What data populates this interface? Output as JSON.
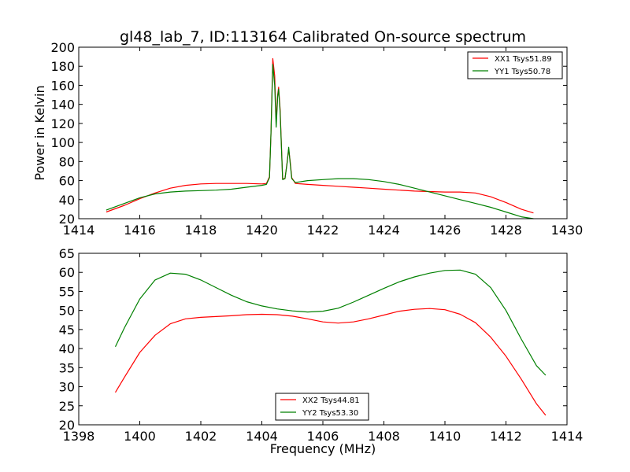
{
  "chart_data": [
    {
      "type": "line",
      "title": "gl48_lab_7, ID:113164 Calibrated On-source spectrum",
      "xlabel": "",
      "ylabel": "Power in Kelvin",
      "xlim": [
        1414,
        1430
      ],
      "ylim": [
        20,
        200
      ],
      "xticks": [
        1414,
        1416,
        1418,
        1420,
        1422,
        1424,
        1426,
        1428,
        1430
      ],
      "yticks": [
        20,
        40,
        60,
        80,
        100,
        120,
        140,
        160,
        180,
        200
      ],
      "legend": "top-right",
      "grid": false,
      "series": [
        {
          "name": "XX1 Tsys51.89",
          "color": "#ff0000",
          "x": [
            1414.9,
            1415.5,
            1416.0,
            1416.5,
            1417.0,
            1417.5,
            1418.0,
            1418.5,
            1419.0,
            1419.5,
            1420.0,
            1420.15,
            1420.25,
            1420.3,
            1420.36,
            1420.42,
            1420.47,
            1420.52,
            1420.55,
            1420.6,
            1420.68,
            1420.76,
            1420.83,
            1420.88,
            1420.93,
            1420.98,
            1421.1,
            1421.5,
            1422.0,
            1422.5,
            1423.0,
            1423.5,
            1424.0,
            1424.5,
            1425.0,
            1425.5,
            1426.0,
            1426.5,
            1427.0,
            1427.5,
            1428.0,
            1428.5,
            1428.9
          ],
          "values": [
            27,
            34,
            41,
            47,
            52,
            55,
            56.5,
            57,
            57,
            57,
            56.5,
            57,
            64,
            110,
            188,
            170,
            122,
            150,
            158,
            135,
            62,
            62,
            80,
            93,
            80,
            63,
            57,
            56,
            55,
            54,
            53,
            52,
            51,
            50,
            49,
            48.5,
            48,
            48,
            47,
            43,
            37,
            30,
            26
          ]
        },
        {
          "name": "YY1 Tsys50.78",
          "color": "#008000",
          "x": [
            1414.9,
            1415.5,
            1416.0,
            1416.5,
            1417.0,
            1417.5,
            1418.0,
            1418.5,
            1419.0,
            1419.5,
            1420.0,
            1420.15,
            1420.25,
            1420.3,
            1420.36,
            1420.42,
            1420.47,
            1420.52,
            1420.55,
            1420.6,
            1420.68,
            1420.76,
            1420.83,
            1420.88,
            1420.93,
            1420.98,
            1421.1,
            1421.5,
            1422.0,
            1422.5,
            1423.0,
            1423.5,
            1424.0,
            1424.5,
            1425.0,
            1425.5,
            1426.0,
            1426.5,
            1427.0,
            1427.5,
            1428.0,
            1428.5,
            1428.9
          ],
          "values": [
            29,
            36,
            42,
            46,
            48,
            49,
            49.5,
            50,
            51,
            53,
            55,
            56,
            63,
            110,
            182,
            160,
            116,
            148,
            156,
            132,
            61,
            62,
            79,
            95,
            78,
            62,
            58,
            60,
            61,
            62,
            62,
            61,
            59,
            56,
            52,
            48,
            44,
            40,
            36,
            32,
            27,
            22,
            20
          ]
        }
      ]
    },
    {
      "type": "line",
      "title": "",
      "xlabel": "Frequency (MHz)",
      "ylabel": "",
      "xlim": [
        1398,
        1414
      ],
      "ylim": [
        20,
        65
      ],
      "xticks": [
        1398,
        1400,
        1402,
        1404,
        1406,
        1408,
        1410,
        1412,
        1414
      ],
      "yticks": [
        20,
        25,
        30,
        35,
        40,
        45,
        50,
        55,
        60,
        65
      ],
      "legend": "lower-center",
      "grid": false,
      "series": [
        {
          "name": "XX2 Tsys44.81",
          "color": "#ff0000",
          "x": [
            1399.2,
            1399.5,
            1400.0,
            1400.5,
            1401.0,
            1401.5,
            1402.0,
            1402.5,
            1403.0,
            1403.5,
            1404.0,
            1404.5,
            1405.0,
            1405.5,
            1406.0,
            1406.5,
            1407.0,
            1407.5,
            1408.0,
            1408.5,
            1409.0,
            1409.5,
            1410.0,
            1410.5,
            1411.0,
            1411.5,
            1412.0,
            1412.5,
            1413.0,
            1413.3
          ],
          "values": [
            28.5,
            32.5,
            39,
            43.5,
            46.5,
            47.8,
            48.2,
            48.4,
            48.6,
            48.9,
            49.0,
            48.9,
            48.5,
            47.8,
            47.0,
            46.7,
            47.0,
            47.8,
            48.8,
            49.8,
            50.3,
            50.5,
            50.2,
            49.0,
            46.8,
            43.0,
            38.0,
            32.0,
            25.5,
            22.5
          ]
        },
        {
          "name": "YY2 Tsys53.30",
          "color": "#008000",
          "x": [
            1399.2,
            1399.5,
            1400.0,
            1400.5,
            1401.0,
            1401.5,
            1402.0,
            1402.5,
            1403.0,
            1403.5,
            1404.0,
            1404.5,
            1405.0,
            1405.5,
            1406.0,
            1406.5,
            1407.0,
            1407.5,
            1408.0,
            1408.5,
            1409.0,
            1409.5,
            1410.0,
            1410.5,
            1411.0,
            1411.5,
            1412.0,
            1412.5,
            1413.0,
            1413.3
          ],
          "values": [
            40.5,
            45.5,
            53,
            58,
            59.8,
            59.5,
            58,
            56,
            54,
            52.3,
            51.2,
            50.4,
            49.9,
            49.6,
            49.8,
            50.6,
            52.2,
            54.0,
            55.8,
            57.5,
            58.8,
            59.8,
            60.5,
            60.6,
            59.5,
            56.0,
            50.0,
            42.5,
            35.5,
            33.0
          ]
        }
      ]
    }
  ]
}
